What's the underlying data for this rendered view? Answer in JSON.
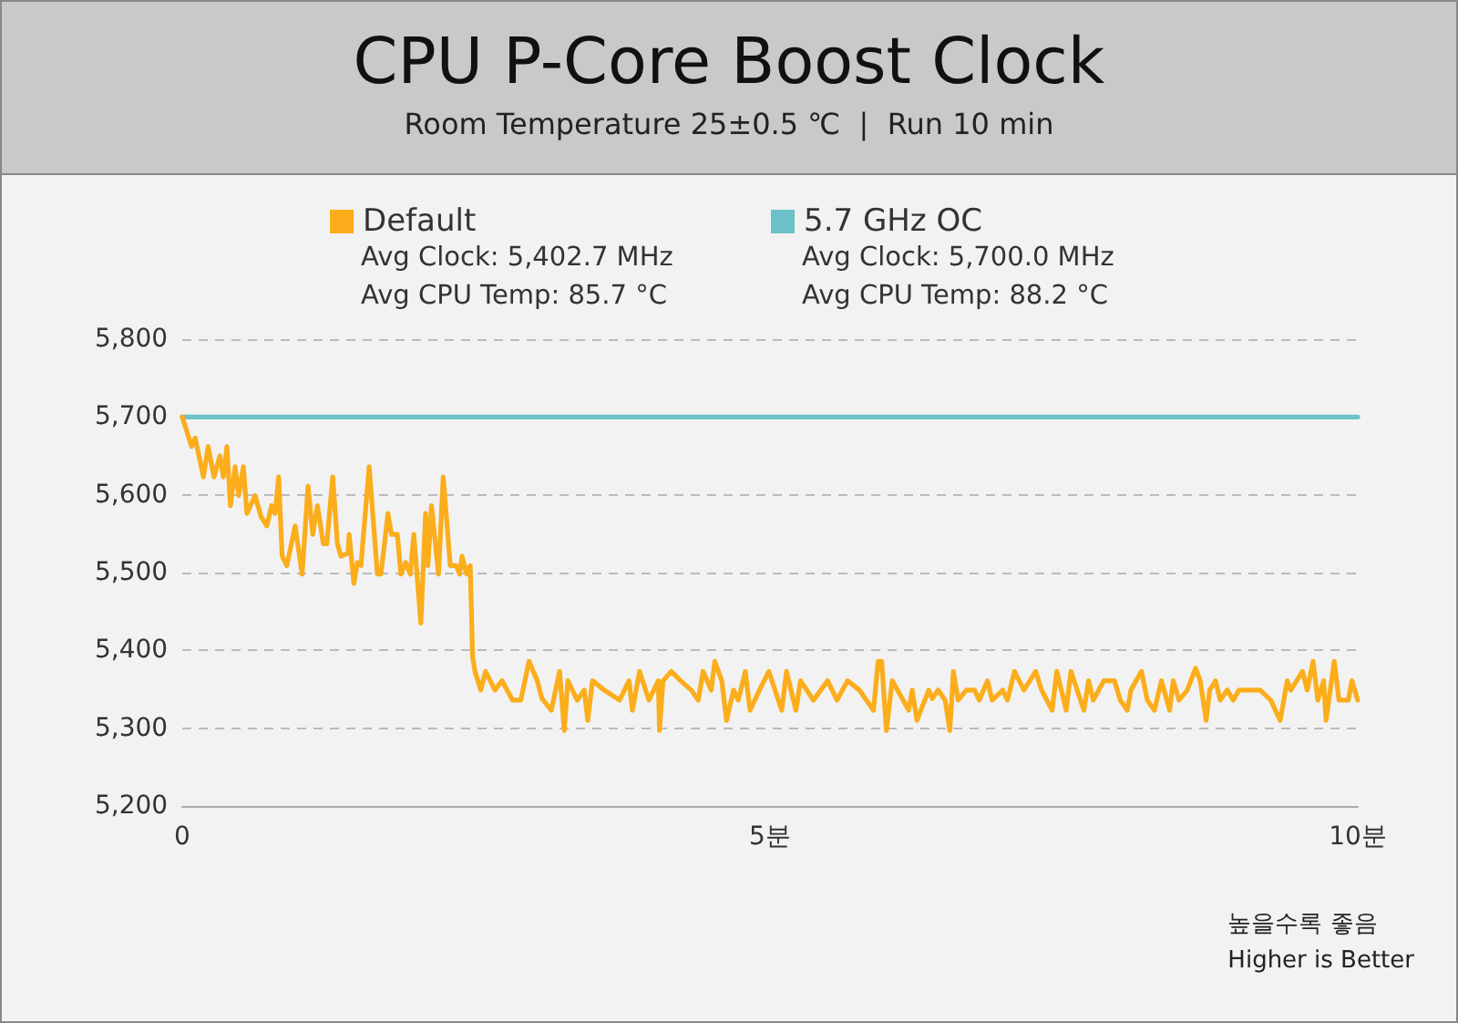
{
  "chart_data": {
    "type": "line",
    "title": "CPU P-Core Boost Clock",
    "subtitle": "Room Temperature 25±0.5 ℃  |  Run 10 min",
    "xlim": [
      0,
      10
    ],
    "xticks": [
      0,
      {
        "value": 5,
        "label": "5분"
      },
      {
        "value": 10,
        "label": "10분"
      }
    ],
    "ylim": [
      5200,
      5800
    ],
    "yticks": [
      {
        "value": 5200,
        "label": "5,200"
      },
      {
        "value": 5300,
        "label": "5,300"
      },
      {
        "value": 5400,
        "label": "5,400"
      },
      {
        "value": 5500,
        "label": "5,500"
      },
      {
        "value": 5600,
        "label": "5,600"
      },
      {
        "value": 5700,
        "label": "5,700"
      },
      {
        "value": 5800,
        "label": "5,800"
      }
    ],
    "grid": "y",
    "legend": "top",
    "annotations": [
      "Avg Clock: 5,402.7 MHz\nAvg CPU Temp: 85.7 °C",
      "Avg Clock: 5,700.0 MHz\nAvg CPU Temp: 88.2 °C",
      "높을수록 좋음\nHigher is Better"
    ],
    "series": [
      {
        "name": "Default",
        "color": "#fbad1b",
        "x": [
          0,
          0.08,
          0.11,
          0.18,
          0.22,
          0.27,
          0.32,
          0.35,
          0.38,
          0.41,
          0.45,
          0.48,
          0.52,
          0.55,
          0.62,
          0.67,
          0.72,
          0.76,
          0.79,
          0.82,
          0.85,
          0.89,
          0.96,
          1.02,
          1.07,
          1.11,
          1.15,
          1.2,
          1.23,
          1.28,
          1.32,
          1.35,
          1.41,
          1.42,
          1.46,
          1.49,
          1.52,
          1.59,
          1.66,
          1.69,
          1.75,
          1.78,
          1.83,
          1.86,
          1.9,
          1.94,
          1.97,
          2.03,
          2.07,
          2.09,
          2.12,
          2.18,
          2.22,
          2.28,
          2.33,
          2.36,
          2.38,
          2.42,
          2.45,
          2.47,
          2.49,
          2.54,
          2.58,
          2.66,
          2.72,
          2.81,
          2.88,
          2.95,
          3.02,
          3.06,
          3.14,
          3.21,
          3.25,
          3.28,
          3.36,
          3.42,
          3.45,
          3.49,
          3.59,
          3.72,
          3.8,
          3.83,
          3.89,
          3.97,
          4.05,
          4.06,
          4.09,
          4.16,
          4.24,
          4.33,
          4.39,
          4.43,
          4.5,
          4.53,
          4.59,
          4.63,
          4.69,
          4.73,
          4.79,
          4.83,
          4.91,
          4.99,
          5.1,
          5.14,
          5.22,
          5.26,
          5.37,
          5.49,
          5.57,
          5.66,
          5.76,
          5.88,
          5.92,
          5.95,
          5.99,
          6.04,
          6.18,
          6.21,
          6.25,
          6.35,
          6.38,
          6.43,
          6.49,
          6.53,
          6.56,
          6.6,
          6.67,
          6.74,
          6.78,
          6.85,
          6.89,
          6.98,
          7.02,
          7.08,
          7.16,
          7.26,
          7.31,
          7.4,
          7.44,
          7.52,
          7.56,
          7.67,
          7.71,
          7.75,
          7.84,
          7.93,
          7.98,
          8.04,
          8.07,
          8.16,
          8.21,
          8.27,
          8.33,
          8.4,
          8.43,
          8.48,
          8.55,
          8.62,
          8.66,
          8.71,
          8.74,
          8.79,
          8.83,
          8.89,
          8.94,
          8.99,
          9.07,
          9.17,
          9.26,
          9.3,
          9.34,
          9.4,
          9.43,
          9.48,
          9.53,
          9.57,
          9.62,
          9.66,
          9.71,
          9.73,
          9.8,
          9.84,
          9.92,
          9.95,
          10
        ],
        "values": [
          5700,
          5662,
          5673,
          5623,
          5662,
          5623,
          5650,
          5623,
          5662,
          5586,
          5636,
          5599,
          5636,
          5576,
          5599,
          5572,
          5560,
          5586,
          5576,
          5623,
          5521,
          5509,
          5560,
          5498,
          5611,
          5549,
          5586,
          5537,
          5537,
          5623,
          5537,
          5521,
          5525,
          5549,
          5486,
          5513,
          5509,
          5636,
          5498,
          5498,
          5576,
          5549,
          5549,
          5498,
          5513,
          5498,
          5549,
          5435,
          5576,
          5509,
          5586,
          5498,
          5623,
          5509,
          5509,
          5498,
          5521,
          5498,
          5509,
          5392,
          5373,
          5349,
          5373,
          5349,
          5361,
          5336,
          5336,
          5386,
          5361,
          5338,
          5323,
          5373,
          5297,
          5361,
          5336,
          5349,
          5310,
          5361,
          5349,
          5336,
          5361,
          5323,
          5373,
          5336,
          5361,
          5297,
          5361,
          5373,
          5361,
          5349,
          5336,
          5373,
          5349,
          5386,
          5361,
          5310,
          5349,
          5336,
          5373,
          5323,
          5349,
          5373,
          5323,
          5373,
          5323,
          5361,
          5336,
          5361,
          5336,
          5361,
          5349,
          5323,
          5386,
          5386,
          5297,
          5361,
          5323,
          5349,
          5310,
          5349,
          5338,
          5349,
          5336,
          5297,
          5373,
          5336,
          5349,
          5349,
          5336,
          5361,
          5336,
          5349,
          5336,
          5373,
          5349,
          5373,
          5349,
          5323,
          5373,
          5323,
          5373,
          5323,
          5361,
          5336,
          5361,
          5361,
          5336,
          5323,
          5349,
          5373,
          5336,
          5323,
          5361,
          5323,
          5361,
          5336,
          5349,
          5377,
          5361,
          5310,
          5349,
          5361,
          5336,
          5349,
          5336,
          5349,
          5349,
          5349,
          5336,
          5323,
          5310,
          5361,
          5349,
          5361,
          5373,
          5349,
          5386,
          5336,
          5361,
          5310,
          5386,
          5336,
          5336,
          5361,
          5336
        ]
      },
      {
        "name": "5.7 GHz OC",
        "color": "#6dc1c9",
        "x": [
          0,
          10
        ],
        "values": [
          5700,
          5700
        ]
      }
    ]
  }
}
